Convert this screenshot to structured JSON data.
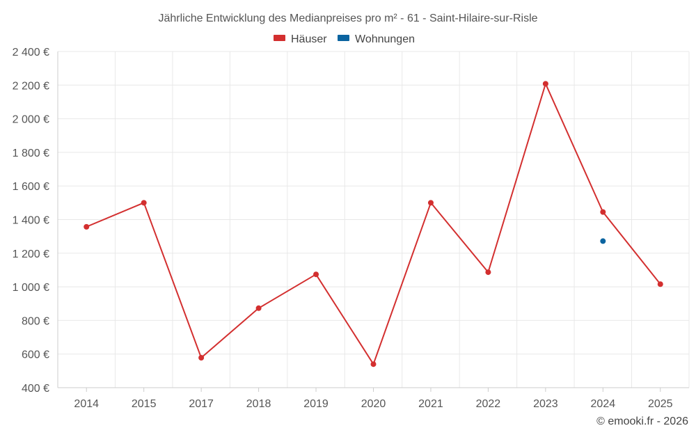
{
  "chart_data": {
    "type": "line",
    "title": "Jährliche Entwicklung des Medianpreises pro m² - 61 - Saint-Hilaire-sur-Risle",
    "categories": [
      "2014",
      "2015",
      "2017",
      "2018",
      "2019",
      "2020",
      "2021",
      "2022",
      "2023",
      "2024",
      "2025"
    ],
    "series": [
      {
        "name": "Häuser",
        "color": "#d32f2f",
        "values": [
          1357,
          1500,
          578,
          873,
          1074,
          540,
          1500,
          1087,
          2208,
          1445,
          1016
        ]
      },
      {
        "name": "Wohnungen",
        "color": "#0b64a0",
        "values": [
          null,
          null,
          null,
          null,
          null,
          null,
          null,
          null,
          null,
          1272,
          null
        ]
      }
    ],
    "ylim": [
      400,
      2400
    ],
    "yticks": [
      400,
      600,
      800,
      1000,
      1200,
      1400,
      1600,
      1800,
      2000,
      2200,
      2400
    ],
    "ytick_labels": [
      "400 €",
      "600 €",
      "800 €",
      "1 000 €",
      "1 200 €",
      "1 400 €",
      "1 600 €",
      "1 800 €",
      "2 000 €",
      "2 200 €",
      "2 400 €"
    ],
    "xlabel": "",
    "ylabel": "",
    "grid": true,
    "legend_position": "top-center"
  },
  "credit": "© emooki.fr - 2026"
}
